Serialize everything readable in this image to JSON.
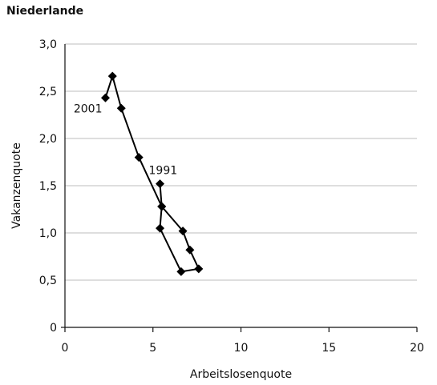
{
  "chart_data": {
    "type": "line",
    "title": "Niederlande",
    "xlabel": "Arbeitslosenquote",
    "ylabel": "Vakanzenquote",
    "xlim": [
      0,
      20
    ],
    "ylim": [
      0,
      3.0
    ],
    "x_ticks": [
      0,
      5,
      10,
      15,
      20
    ],
    "x_tick_labels": [
      "0",
      "5",
      "10",
      "15",
      "20"
    ],
    "y_ticks": [
      0,
      0.5,
      1.0,
      1.5,
      2.0,
      2.5,
      3.0
    ],
    "y_tick_labels": [
      "0",
      "0,5",
      "1,0",
      "1,5",
      "2,0",
      "2,5",
      "3,0"
    ],
    "grid": "horizontal",
    "series": [
      {
        "points": [
          [
            5.4,
            1.52
          ],
          [
            5.5,
            1.28
          ],
          [
            6.7,
            1.02
          ],
          [
            7.1,
            0.82
          ],
          [
            7.6,
            0.62
          ],
          [
            6.6,
            0.59
          ],
          [
            5.4,
            1.05
          ],
          [
            5.5,
            1.28
          ],
          [
            4.2,
            1.8
          ],
          [
            3.2,
            2.32
          ],
          [
            2.7,
            2.66
          ],
          [
            2.3,
            2.43
          ]
        ]
      }
    ],
    "annotations": [
      {
        "text": "1991",
        "x": 5.4,
        "y": 1.52
      },
      {
        "text": "2001",
        "x": 2.3,
        "y": 2.43
      }
    ]
  }
}
